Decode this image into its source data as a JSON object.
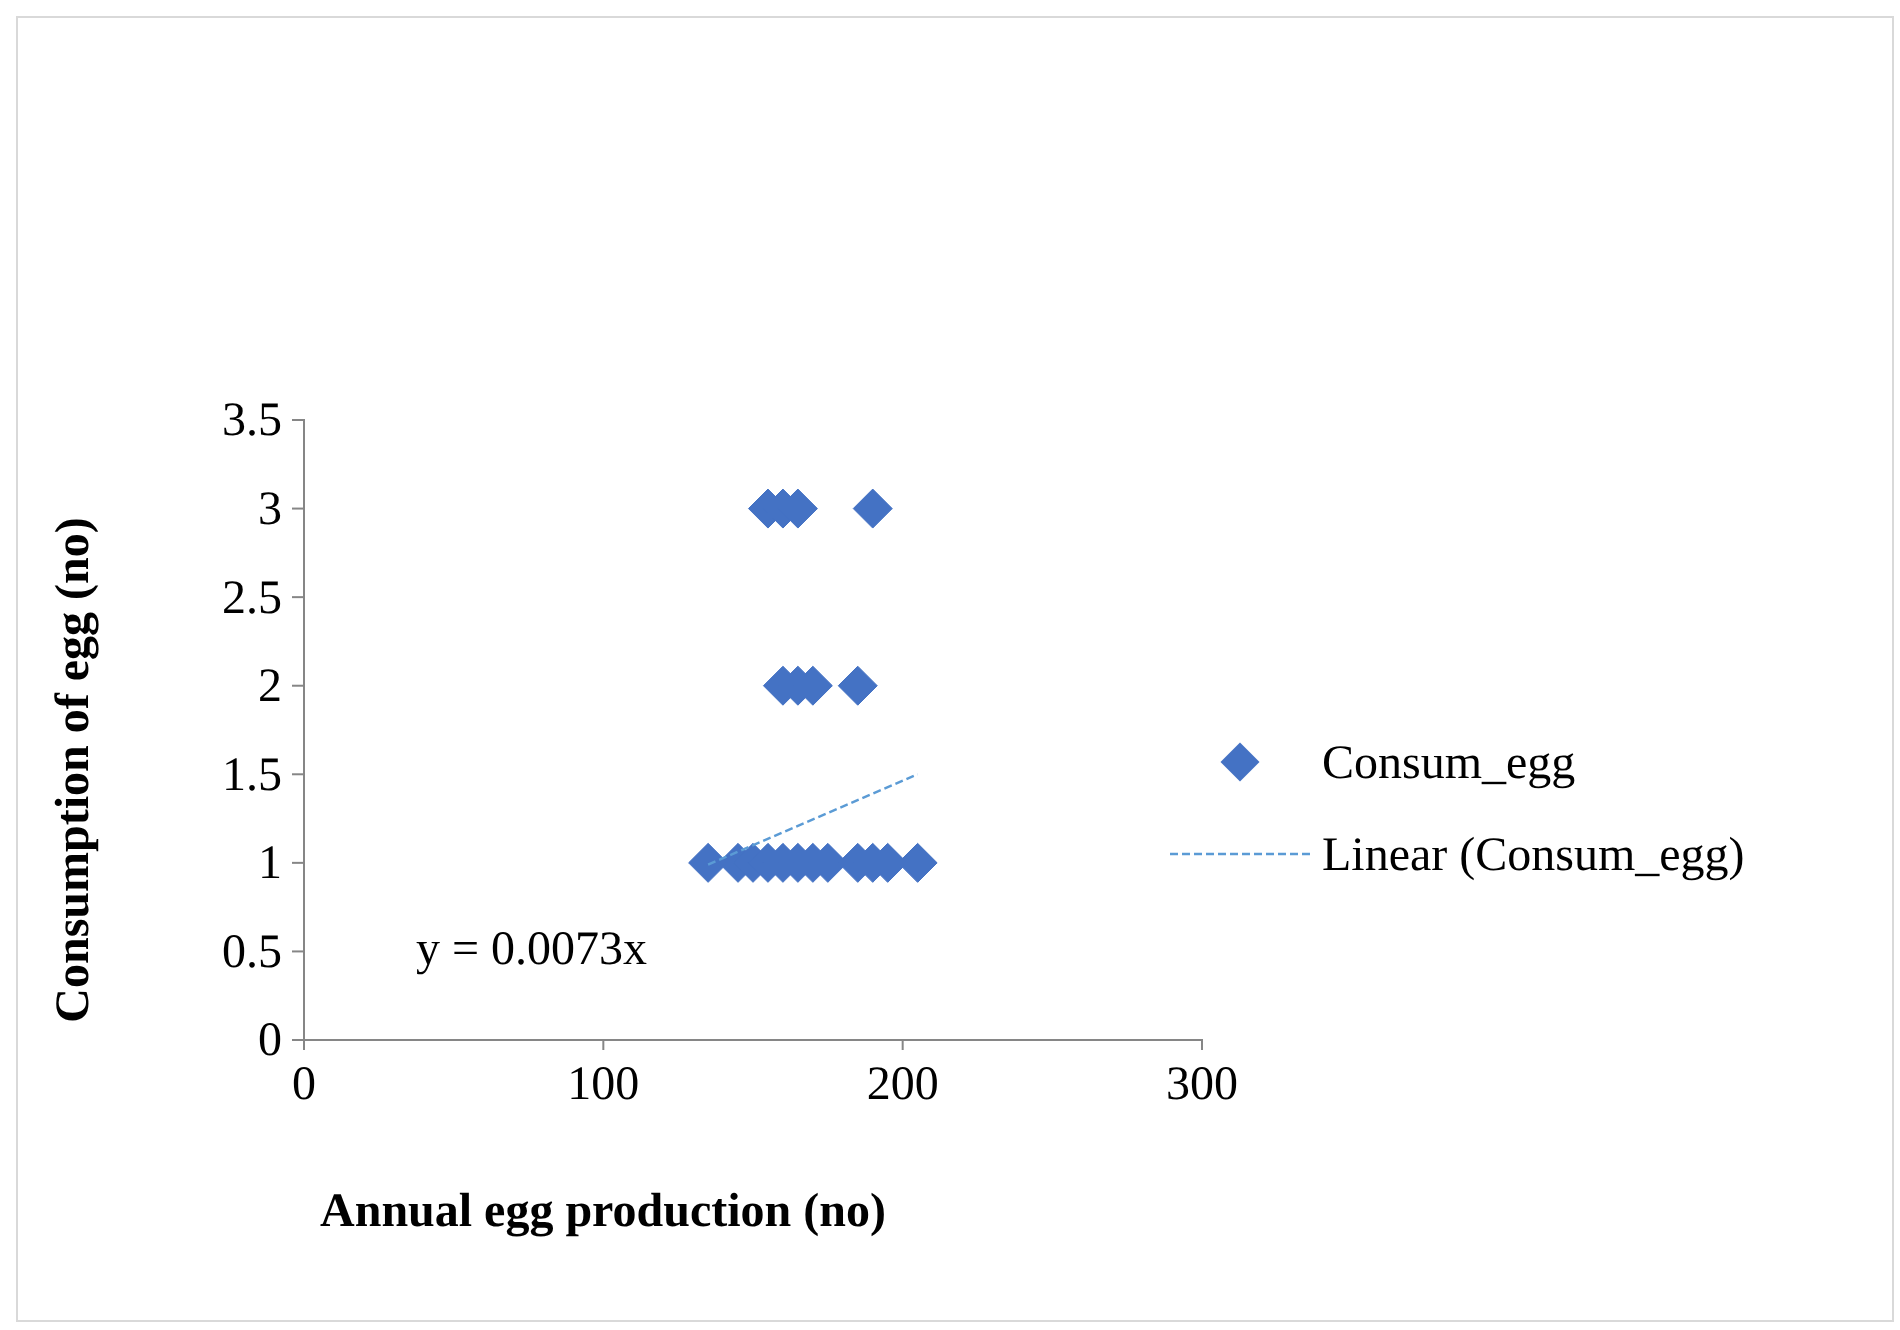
{
  "chart_data": {
    "type": "scatter",
    "xlabel": "Annual egg production (no)",
    "ylabel": "Consumption of egg (no)",
    "xlim": [
      0,
      300
    ],
    "xticks": [
      0,
      100,
      200,
      300
    ],
    "ylim": [
      0,
      3.5
    ],
    "yticks": [
      0,
      0.5,
      1,
      1.5,
      2,
      2.5,
      3,
      3.5
    ],
    "grid": false,
    "legend": "right",
    "annotations": [
      "y = 0.0073x"
    ],
    "series": [
      {
        "name": "Consum_egg",
        "color": "#4472c4",
        "marker": "diamond",
        "x": [
          155,
          160,
          165,
          190,
          160,
          165,
          170,
          185,
          135,
          145,
          150,
          155,
          160,
          165,
          170,
          175,
          185,
          190,
          195,
          205
        ],
        "values": [
          3,
          3,
          3,
          3,
          2,
          2,
          2,
          2,
          1,
          1,
          1,
          1,
          1,
          1,
          1,
          1,
          1,
          1,
          1,
          1
        ]
      },
      {
        "name": "Linear (Consum_egg)",
        "type": "line",
        "line_style": "dashed",
        "marker": "none",
        "color": "#5b9bd5",
        "x": [
          135,
          205
        ],
        "values": [
          0.99,
          1.5
        ]
      }
    ]
  }
}
